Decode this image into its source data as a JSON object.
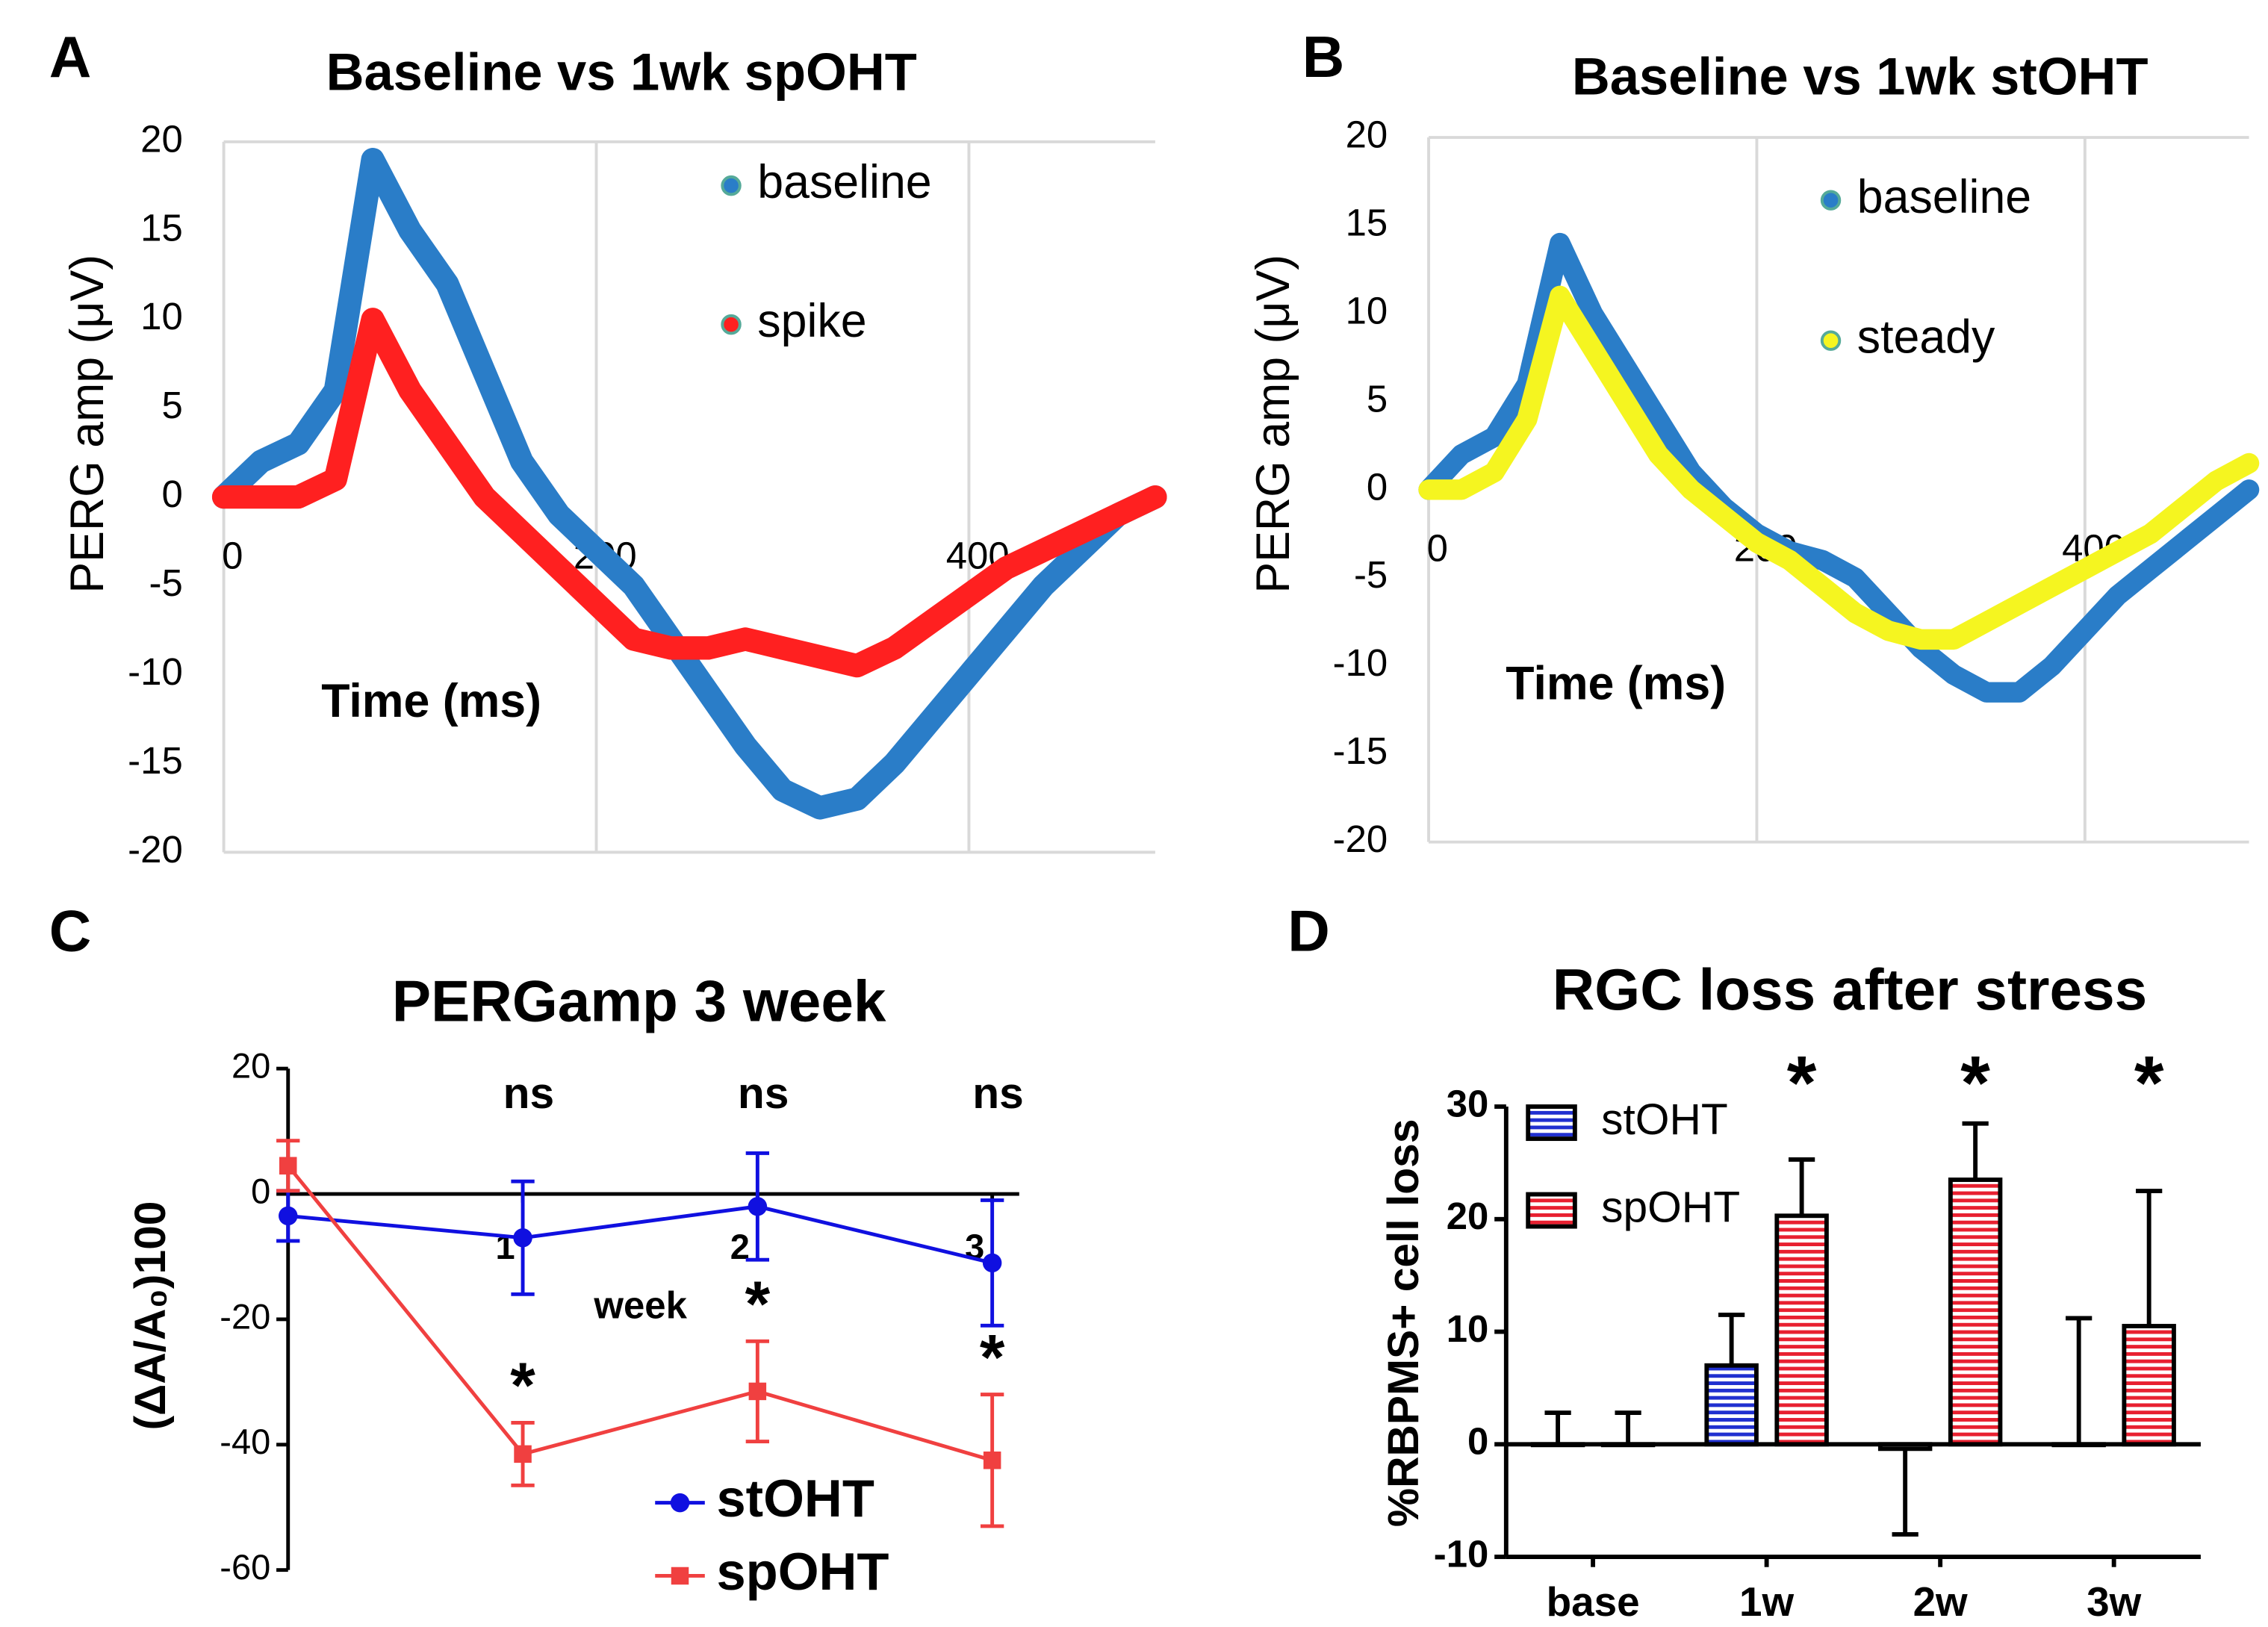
{
  "chart_data": [
    {
      "type": "line",
      "panel": "A",
      "title": "Baseline vs 1wk spOHT",
      "xlabel": "Time (ms)",
      "ylabel": "PERG amp (μV)",
      "x": [
        0,
        20,
        40,
        60,
        80,
        100,
        120,
        140,
        160,
        180,
        200,
        220,
        240,
        260,
        280,
        300,
        320,
        340,
        360,
        380,
        400,
        420,
        440,
        460,
        480,
        500
      ],
      "series": [
        {
          "name": "baseline",
          "color": "#2a7dc8",
          "values": [
            0,
            2,
            3,
            6,
            19,
            15,
            12,
            7,
            2,
            -1,
            -3,
            -5,
            -8,
            -11,
            -14,
            -16.5,
            -17.5,
            -17,
            -15,
            -12.5,
            -10,
            -7.5,
            -5,
            -3,
            -1,
            0
          ]
        },
        {
          "name": "spike",
          "color": "#ff2020",
          "values": [
            0,
            0,
            0,
            1,
            10,
            6,
            3,
            0,
            -2,
            -4,
            -6,
            -8,
            -8.5,
            -8.5,
            -8,
            -8.5,
            -9,
            -9.5,
            -8.5,
            -7,
            -5.5,
            -4,
            -3,
            -2,
            -1,
            0
          ]
        }
      ],
      "xlim": [
        0,
        500
      ],
      "xticks": [
        0,
        200,
        400
      ],
      "ylim": [
        -20,
        20
      ],
      "yticks": [
        -20,
        -15,
        -10,
        -5,
        0,
        5,
        10,
        15,
        20
      ],
      "grid": true
    },
    {
      "type": "line",
      "panel": "B",
      "title": "Baseline vs 1wk stOHT",
      "xlabel": "Time (ms)",
      "ylabel": "PERG amp (μV)",
      "x": [
        0,
        20,
        40,
        60,
        80,
        100,
        120,
        140,
        160,
        180,
        200,
        220,
        240,
        260,
        280,
        300,
        320,
        340,
        360,
        380,
        400,
        420,
        440,
        460,
        480,
        500
      ],
      "series": [
        {
          "name": "baseline",
          "color": "#2a7dc8",
          "values": [
            0,
            2,
            3,
            6,
            14,
            10,
            7,
            4,
            1,
            -1,
            -2.5,
            -3.5,
            -4,
            -5,
            -7,
            -9,
            -10.5,
            -11.5,
            -11.5,
            -10,
            -8,
            -6,
            -4.5,
            -3,
            -1.5,
            0
          ]
        },
        {
          "name": "steady",
          "color": "#f5f520",
          "values": [
            0,
            0,
            1,
            4,
            11,
            8,
            5,
            2,
            0,
            -1.5,
            -3,
            -4,
            -5.5,
            -7,
            -8,
            -8.5,
            -8.5,
            -7.5,
            -6.5,
            -5.5,
            -4.5,
            -3.5,
            -2.5,
            -1,
            0.5,
            1.5
          ]
        }
      ],
      "xlim": [
        0,
        500
      ],
      "xticks": [
        0,
        200,
        400
      ],
      "ylim": [
        -20,
        20
      ],
      "yticks": [
        -20,
        -15,
        -10,
        -5,
        0,
        5,
        10,
        15,
        20
      ],
      "grid": true
    },
    {
      "type": "errorline",
      "panel": "C",
      "title": "PERGamp 3 week",
      "xlabel": "week",
      "ylabel": "(ΔA/A₀)100",
      "x": [
        0,
        1,
        2,
        3
      ],
      "series": [
        {
          "name": "stOHT",
          "color": "#1010e0",
          "marker": "circle",
          "values": [
            -3.5,
            -7,
            -2,
            -11
          ],
          "errors": [
            4,
            9,
            8.5,
            10
          ]
        },
        {
          "name": "spOHT",
          "color": "#f04040",
          "marker": "square",
          "values": [
            4.5,
            -41.5,
            -31.5,
            -42.5
          ],
          "errors": [
            4,
            5,
            8,
            10.5
          ]
        }
      ],
      "xlim": [
        0,
        3.115
      ],
      "xticks": [
        1,
        2,
        3
      ],
      "ylim": [
        -60,
        20
      ],
      "yticks": [
        -60,
        -40,
        -20,
        0,
        20
      ],
      "annotations": [
        {
          "text": "ns",
          "x": 1
        },
        {
          "text": "ns",
          "x": 2
        },
        {
          "text": "ns",
          "x": 3
        },
        {
          "text": "*",
          "x": 1
        },
        {
          "text": "*",
          "x": 2
        },
        {
          "text": "*",
          "x": 3
        }
      ]
    },
    {
      "type": "bar",
      "panel": "D",
      "title": "RGC loss after stress",
      "ylabel": "%RBPMS+ cell loss",
      "categories": [
        "base",
        "1w",
        "2w",
        "3w"
      ],
      "series": [
        {
          "name": "stOHT",
          "color": "#2030d0",
          "values": [
            0,
            7,
            -0.4,
            0
          ],
          "errors": [
            2.8,
            4.5,
            7.6,
            11.2
          ]
        },
        {
          "name": "spOHT",
          "color": "#e82030",
          "values": [
            0,
            20.3,
            23.5,
            10.5
          ],
          "errors": [
            2.8,
            5,
            5,
            12
          ]
        }
      ],
      "ylim": [
        -10,
        30
      ],
      "yticks": [
        -10,
        0,
        10,
        20,
        30
      ],
      "annotations": [
        {
          "text": "*",
          "x": 1
        },
        {
          "text": "*",
          "x": 2
        },
        {
          "text": "*",
          "x": 3
        }
      ]
    }
  ]
}
